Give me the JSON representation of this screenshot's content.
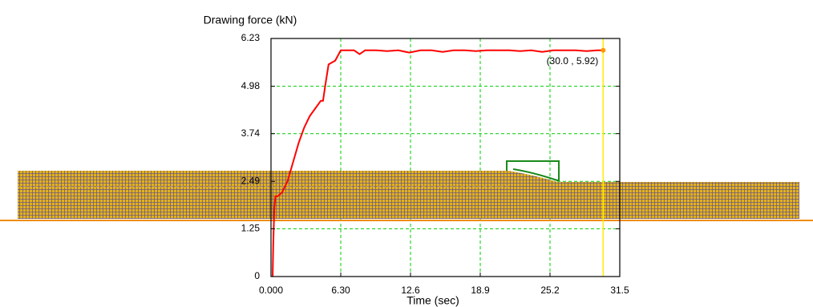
{
  "chart_data": {
    "type": "line",
    "title": "Drawing force (kN)",
    "x_label": "Time (sec)",
    "x": [
      0.15,
      0.2,
      0.3,
      0.4,
      0.6,
      1.0,
      1.5,
      2.0,
      2.5,
      3.0,
      3.5,
      4.0,
      4.5,
      4.7,
      4.9,
      5.2,
      5.8,
      6.3,
      7.5,
      8.0,
      8.5,
      9.5,
      10.5,
      11.5,
      12.5,
      13.5,
      14.5,
      15.5,
      16.5,
      17.5,
      18.5,
      19.5,
      20.5,
      21.5,
      22.5,
      23.5,
      24.5,
      25.5,
      26.5,
      27.5,
      28.5,
      29.5,
      30.0
    ],
    "values": [
      0,
      0.8,
      1.8,
      2.1,
      2.1,
      2.2,
      2.5,
      3.0,
      3.5,
      3.9,
      4.2,
      4.4,
      4.6,
      4.6,
      5.0,
      5.55,
      5.65,
      5.92,
      5.92,
      5.82,
      5.92,
      5.92,
      5.9,
      5.92,
      5.86,
      5.92,
      5.92,
      5.88,
      5.92,
      5.92,
      5.9,
      5.92,
      5.92,
      5.92,
      5.9,
      5.92,
      5.88,
      5.92,
      5.92,
      5.92,
      5.9,
      5.92,
      5.92
    ],
    "color": "#ff0000",
    "xlim": [
      0,
      31.5
    ],
    "ylim": [
      0,
      6.23
    ],
    "xticks": [
      {
        "value": 0,
        "label": "0.000"
      },
      {
        "value": 6.3,
        "label": "6.30"
      },
      12.6,
      18.9,
      25.2,
      31.5
    ],
    "yticks": [
      0,
      1.25,
      2.49,
      3.74,
      4.98,
      6.23
    ],
    "grid": true,
    "grid_color": "#00cc00",
    "cursor": {
      "x": 30.0,
      "y": 5.92,
      "label": "(30.0 , 5.92)",
      "color": "#ffee00",
      "marker_color": "#ff9900"
    }
  }
}
